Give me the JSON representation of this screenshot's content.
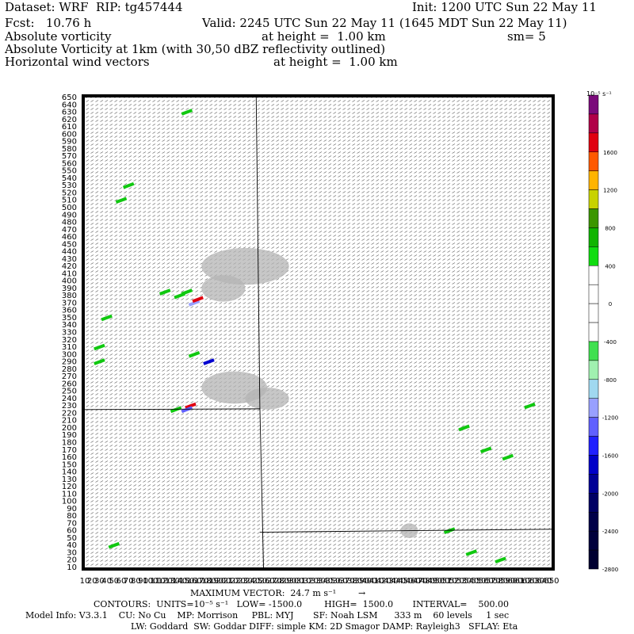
{
  "header": {
    "dataset": "Dataset: WRF  RIP: tg457444",
    "init": "Init: 1200 UTC Sun 22 May 11",
    "fcst": "Fcst:   10.76 h",
    "valid": "Valid: 2245 UTC Sun 22 May 11 (1645 MDT Sun 22 May 11)",
    "field1": "Absolute vorticity",
    "field1_height": "at height =  1.00 km",
    "field1_sm": "sm= 5",
    "field2": "Absolute Vorticity at 1km (with 30,50 dBZ reflectivity outlined)",
    "field3": "Horizontal wind vectors",
    "field3_height": "at height =  1.00 km"
  },
  "colorbar": {
    "units": "10⁻⁵ s⁻¹",
    "labels": [
      "1600",
      "1200",
      "800",
      "400",
      "0",
      "-400",
      "-800",
      "-1200",
      "-1600",
      "-2000",
      "-2400",
      "-2800"
    ],
    "colors": [
      "#7a0a7a",
      "#b00048",
      "#e00010",
      "#ff5a00",
      "#ffb400",
      "#c8d200",
      "#3c9600",
      "#10b400",
      "#10dc10",
      "#ffffff",
      "#ffffff",
      "#ffffff",
      "#ffffff",
      "#40e050",
      "#a0f0b0",
      "#a0d8f0",
      "#98a0ff",
      "#6060ff",
      "#2020ff",
      "#0000c8",
      "#000096",
      "#000064",
      "#000048",
      "#00003c",
      "#000030"
    ]
  },
  "footer": {
    "max_vector": "MAXIMUM VECTOR:  24.7 m s⁻¹",
    "max_vector_arrow": "→",
    "contours": "CONTOURS:  UNITS=10⁻⁵ s⁻¹   LOW= -1500.0        HIGH=  1500.0       INTERVAL=    500.00",
    "model_info": "Model Info: V3.3.1    CU: No Cu    MP: Morrison     PBL: MYJ       SF: Noah LSM      333 m    60 levels     1 sec",
    "model_info2": "LW: Goddard  SW: Goddar DIFF: simple KM: 2D Smagor DAMP: Rayleigh3   SFLAY: Eta"
  },
  "chart_data": {
    "type": "heatmap",
    "title": "Absolute Vorticity at 1km (with 30,50 dBZ reflectivity outlined)",
    "x_axis": {
      "min": 10,
      "max": 650,
      "step": 10,
      "labels": "10 ... 650 (grid points)"
    },
    "y_axis": {
      "min": 10,
      "max": 650,
      "step": 10
    },
    "y_tick_labels": [
      "650",
      "640",
      "630",
      "620",
      "610",
      "600",
      "590",
      "580",
      "570",
      "560",
      "550",
      "540",
      "530",
      "520",
      "510",
      "500",
      "490",
      "480",
      "470",
      "460",
      "450",
      "440",
      "430",
      "420",
      "410",
      "400",
      "390",
      "380",
      "370",
      "360",
      "350",
      "340",
      "330",
      "320",
      "310",
      "300",
      "290",
      "280",
      "270",
      "260",
      "250",
      "240",
      "230",
      "220",
      "210",
      "200",
      "190",
      "180",
      "170",
      "160",
      "150",
      "140",
      "130",
      "120",
      "110",
      "100",
      "90",
      "80",
      "70",
      "60",
      "50",
      "40",
      "30",
      "20",
      "10"
    ],
    "x_tick_labels": [
      "10",
      "20",
      "30",
      "40",
      "50",
      "60",
      "70",
      "80",
      "90",
      "100",
      "110",
      "120",
      "130",
      "140",
      "150",
      "160",
      "170",
      "180",
      "190",
      "200",
      "210",
      "220",
      "230",
      "240",
      "250",
      "260",
      "270",
      "280",
      "290",
      "300",
      "310",
      "320",
      "330",
      "340",
      "350",
      "360",
      "370",
      "380",
      "390",
      "400",
      "410",
      "420",
      "430",
      "440",
      "450",
      "460",
      "470",
      "480",
      "490",
      "500",
      "510",
      "520",
      "530",
      "540",
      "550",
      "560",
      "570",
      "580",
      "590",
      "600",
      "610",
      "620",
      "630",
      "640",
      "650"
    ],
    "reflectivity_regions": [
      {
        "cx": 230,
        "cy": 420,
        "rx": 60,
        "ry": 25
      },
      {
        "cx": 200,
        "cy": 390,
        "rx": 30,
        "ry": 18
      },
      {
        "cx": 215,
        "cy": 255,
        "rx": 45,
        "ry": 22
      },
      {
        "cx": 260,
        "cy": 240,
        "rx": 30,
        "ry": 15
      },
      {
        "cx": 455,
        "cy": 60,
        "rx": 12,
        "ry": 10
      }
    ],
    "vorticity_patches": [
      {
        "x": 140,
        "y": 380,
        "value": 600
      },
      {
        "x": 150,
        "y": 385,
        "value": 500
      },
      {
        "x": 160,
        "y": 370,
        "value": -800
      },
      {
        "x": 165,
        "y": 375,
        "value": 1600
      },
      {
        "x": 120,
        "y": 385,
        "value": 400
      },
      {
        "x": 155,
        "y": 230,
        "value": 1800
      },
      {
        "x": 150,
        "y": 225,
        "value": -1200
      },
      {
        "x": 135,
        "y": 225,
        "value": 500
      },
      {
        "x": 160,
        "y": 300,
        "value": 500
      },
      {
        "x": 180,
        "y": 290,
        "value": -1600
      },
      {
        "x": 40,
        "y": 350,
        "value": 400
      },
      {
        "x": 30,
        "y": 310,
        "value": 400
      },
      {
        "x": 30,
        "y": 290,
        "value": 400
      },
      {
        "x": 70,
        "y": 530,
        "value": 400
      },
      {
        "x": 60,
        "y": 510,
        "value": 400
      },
      {
        "x": 150,
        "y": 630,
        "value": 400
      },
      {
        "x": 530,
        "y": 200,
        "value": 400
      },
      {
        "x": 560,
        "y": 170,
        "value": 400
      },
      {
        "x": 590,
        "y": 160,
        "value": 400
      },
      {
        "x": 510,
        "y": 60,
        "value": 400
      },
      {
        "x": 540,
        "y": 30,
        "value": 400
      },
      {
        "x": 580,
        "y": 20,
        "value": 400
      },
      {
        "x": 620,
        "y": 230,
        "value": 400
      },
      {
        "x": 50,
        "y": 40,
        "value": 400
      }
    ]
  }
}
